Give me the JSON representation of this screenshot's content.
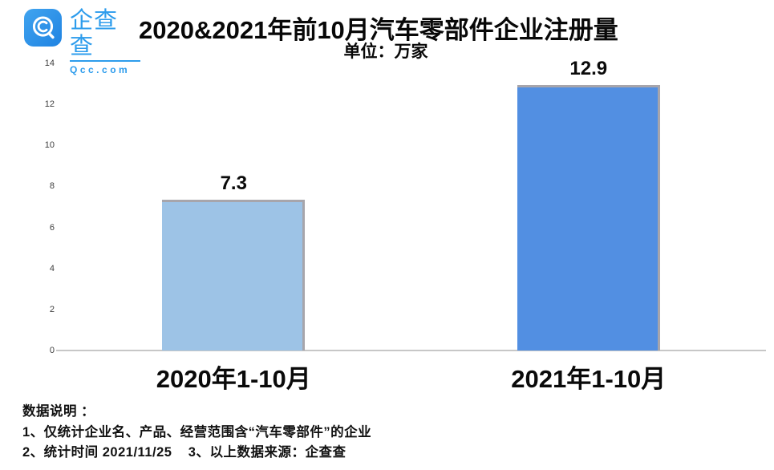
{
  "brand": {
    "name": "企查查",
    "domain": "Qcc.com",
    "icon_color": "#2e93e9",
    "text_color": "#2d9cec"
  },
  "header": {
    "title": "2020&2021年前10月汽车零部件企业注册量",
    "subtitle": "单位：万家"
  },
  "chart_data": {
    "type": "bar",
    "title": "2020&2021年前10月汽车零部件企业注册量",
    "unit_label": "单位：万家",
    "categories": [
      "2020年1-10月",
      "2021年1-10月"
    ],
    "values": [
      7.3,
      12.9
    ],
    "value_labels": [
      "7.3",
      "12.9"
    ],
    "bar_colors": [
      "#9dc3e6",
      "#528fe2"
    ],
    "bar_edge_color": "#a7a5ab",
    "ylim": [
      0,
      14
    ],
    "yticks": [
      0,
      2,
      4,
      6,
      8,
      10,
      12,
      14
    ],
    "xlabel": "",
    "ylabel": "",
    "grid": false,
    "legend": "none"
  },
  "footer": {
    "heading": "数据说明 ：",
    "lines": [
      "数据说明 ：",
      "1、仅统计企业名、产品、经营范围含“汽车零部件”的企业",
      "2、统计时间 2021/11/25    3、以上数据来源：企查查"
    ]
  }
}
